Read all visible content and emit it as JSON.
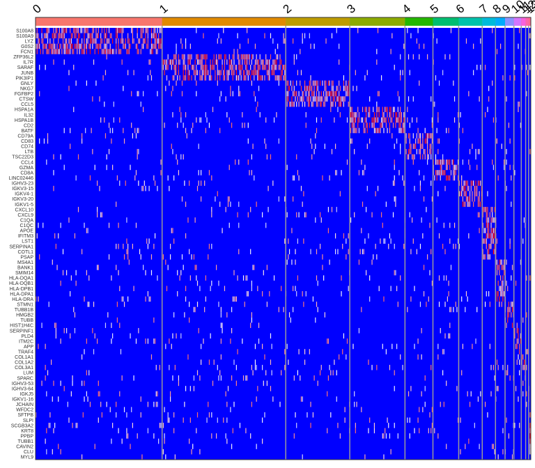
{
  "chart_data": {
    "type": "heatmap",
    "title": "",
    "xlabel": "",
    "ylabel": "",
    "clusters": [
      {
        "id": "0",
        "cells": 1720,
        "color": "#F8766D"
      },
      {
        "id": "1",
        "cells": 1680,
        "color": "#E18A00"
      },
      {
        "id": "2",
        "cells": 870,
        "color": "#BE9C00"
      },
      {
        "id": "3",
        "cells": 750,
        "color": "#8CAB00"
      },
      {
        "id": "4",
        "cells": 380,
        "color": "#24B700"
      },
      {
        "id": "5",
        "cells": 350,
        "color": "#00BE70"
      },
      {
        "id": "6",
        "cells": 320,
        "color": "#00C1AB"
      },
      {
        "id": "7",
        "cells": 180,
        "color": "#00BBDA"
      },
      {
        "id": "8",
        "cells": 130,
        "color": "#00ACFC"
      },
      {
        "id": "9",
        "cells": 120,
        "color": "#8B93FF"
      },
      {
        "id": "10",
        "cells": 100,
        "color": "#D575FE"
      },
      {
        "id": "11",
        "cells": 60,
        "color": "#F962DD"
      },
      {
        "id": "12",
        "cells": 40,
        "color": "#FF65AC"
      },
      {
        "id": "13",
        "cells": 30,
        "color": "#FF6C91"
      }
    ],
    "genes": [
      {
        "name": "S100A8",
        "cluster": "0"
      },
      {
        "name": "S100A9",
        "cluster": "0"
      },
      {
        "name": "LYZ",
        "cluster": "0"
      },
      {
        "name": "G0S2",
        "cluster": "0"
      },
      {
        "name": "FCN1",
        "cluster": "0"
      },
      {
        "name": "ZFP36L2",
        "cluster": "1"
      },
      {
        "name": "IL7R",
        "cluster": "1"
      },
      {
        "name": "SARAF",
        "cluster": "1"
      },
      {
        "name": "JUNB",
        "cluster": "1"
      },
      {
        "name": "PIK3IP1",
        "cluster": "1"
      },
      {
        "name": "GNLY",
        "cluster": "2"
      },
      {
        "name": "NKG7",
        "cluster": "2"
      },
      {
        "name": "FGFBP2",
        "cluster": "2"
      },
      {
        "name": "CTSW",
        "cluster": "2"
      },
      {
        "name": "CCL5",
        "cluster": "2"
      },
      {
        "name": "HSPA1A",
        "cluster": "3"
      },
      {
        "name": "IL32",
        "cluster": "3"
      },
      {
        "name": "HSPA1B",
        "cluster": "3"
      },
      {
        "name": "CD2",
        "cluster": "3"
      },
      {
        "name": "BATF",
        "cluster": "3"
      },
      {
        "name": "CD79A",
        "cluster": "4"
      },
      {
        "name": "CD83",
        "cluster": "4"
      },
      {
        "name": "CD74",
        "cluster": "4"
      },
      {
        "name": "LTB",
        "cluster": "4"
      },
      {
        "name": "TSC22D3",
        "cluster": "4"
      },
      {
        "name": "CCL4",
        "cluster": "5"
      },
      {
        "name": "GZMA",
        "cluster": "5"
      },
      {
        "name": "CD8A",
        "cluster": "5"
      },
      {
        "name": "LINC02446",
        "cluster": "5"
      },
      {
        "name": "IGHV3-23",
        "cluster": "6"
      },
      {
        "name": "IGKV3-15",
        "cluster": "6"
      },
      {
        "name": "IGKV4-1",
        "cluster": "6"
      },
      {
        "name": "IGKV3-20",
        "cluster": "6"
      },
      {
        "name": "IGKV1-5",
        "cluster": "6"
      },
      {
        "name": "CXCL10",
        "cluster": "7"
      },
      {
        "name": "CXCL9",
        "cluster": "7"
      },
      {
        "name": "C1QA",
        "cluster": "7"
      },
      {
        "name": "C1QC",
        "cluster": "7"
      },
      {
        "name": "APOE",
        "cluster": "7"
      },
      {
        "name": "IFITM3",
        "cluster": "7"
      },
      {
        "name": "LST1",
        "cluster": "7"
      },
      {
        "name": "SERPINA1",
        "cluster": "7"
      },
      {
        "name": "COTL1",
        "cluster": "7"
      },
      {
        "name": "PSAP",
        "cluster": "7"
      },
      {
        "name": "MS4A1",
        "cluster": "8"
      },
      {
        "name": "BANK1",
        "cluster": "8"
      },
      {
        "name": "SMIM14",
        "cluster": "8"
      },
      {
        "name": "HLA-DQA1",
        "cluster": "8"
      },
      {
        "name": "HLA-DQB1",
        "cluster": "8"
      },
      {
        "name": "HLA-DPB1",
        "cluster": "8"
      },
      {
        "name": "HLA-DPA1",
        "cluster": "8"
      },
      {
        "name": "HLA-DRA",
        "cluster": "8"
      },
      {
        "name": "STMN1",
        "cluster": "9"
      },
      {
        "name": "TUBB1B",
        "cluster": "9"
      },
      {
        "name": "HMGB2",
        "cluster": "9"
      },
      {
        "name": "TUBB",
        "cluster": "9"
      },
      {
        "name": "HIST1H4C",
        "cluster": "9"
      },
      {
        "name": "SERPINF1",
        "cluster": "10"
      },
      {
        "name": "PLD4",
        "cluster": "10"
      },
      {
        "name": "ITM2C",
        "cluster": "10"
      },
      {
        "name": "APP",
        "cluster": "10"
      },
      {
        "name": "TRAF4",
        "cluster": "10"
      },
      {
        "name": "COL1A1",
        "cluster": "11"
      },
      {
        "name": "COL1A2",
        "cluster": "11"
      },
      {
        "name": "COL3A1",
        "cluster": "11"
      },
      {
        "name": "LUM",
        "cluster": "11"
      },
      {
        "name": "SPARC",
        "cluster": "11"
      },
      {
        "name": "IGHV3-53",
        "cluster": "12"
      },
      {
        "name": "IGHV3-64",
        "cluster": "12"
      },
      {
        "name": "IGKJ5",
        "cluster": "12"
      },
      {
        "name": "IGKV1-16",
        "cluster": "12"
      },
      {
        "name": "JCHAIN",
        "cluster": "12"
      },
      {
        "name": "WFDC2",
        "cluster": "13"
      },
      {
        "name": "SFTPB",
        "cluster": "13"
      },
      {
        "name": "SLPI",
        "cluster": "13"
      },
      {
        "name": "SCGB3A2",
        "cluster": "13"
      },
      {
        "name": "KRT8",
        "cluster": "13"
      },
      {
        "name": "PPBP",
        "cluster": "13"
      },
      {
        "name": "TUBB1",
        "cluster": "13"
      },
      {
        "name": "CAVIN2",
        "cluster": "13"
      },
      {
        "name": "CLU",
        "cluster": "13"
      },
      {
        "name": "MYL9",
        "cluster": "13"
      }
    ],
    "color_scale": {
      "low": "#0000FF",
      "mid": "#FFFFFF",
      "high": "#FF0000"
    },
    "expression_range": [
      -2.5,
      2.5
    ],
    "divider_color": "#9A9A9A",
    "legend": "none",
    "grid": false
  }
}
